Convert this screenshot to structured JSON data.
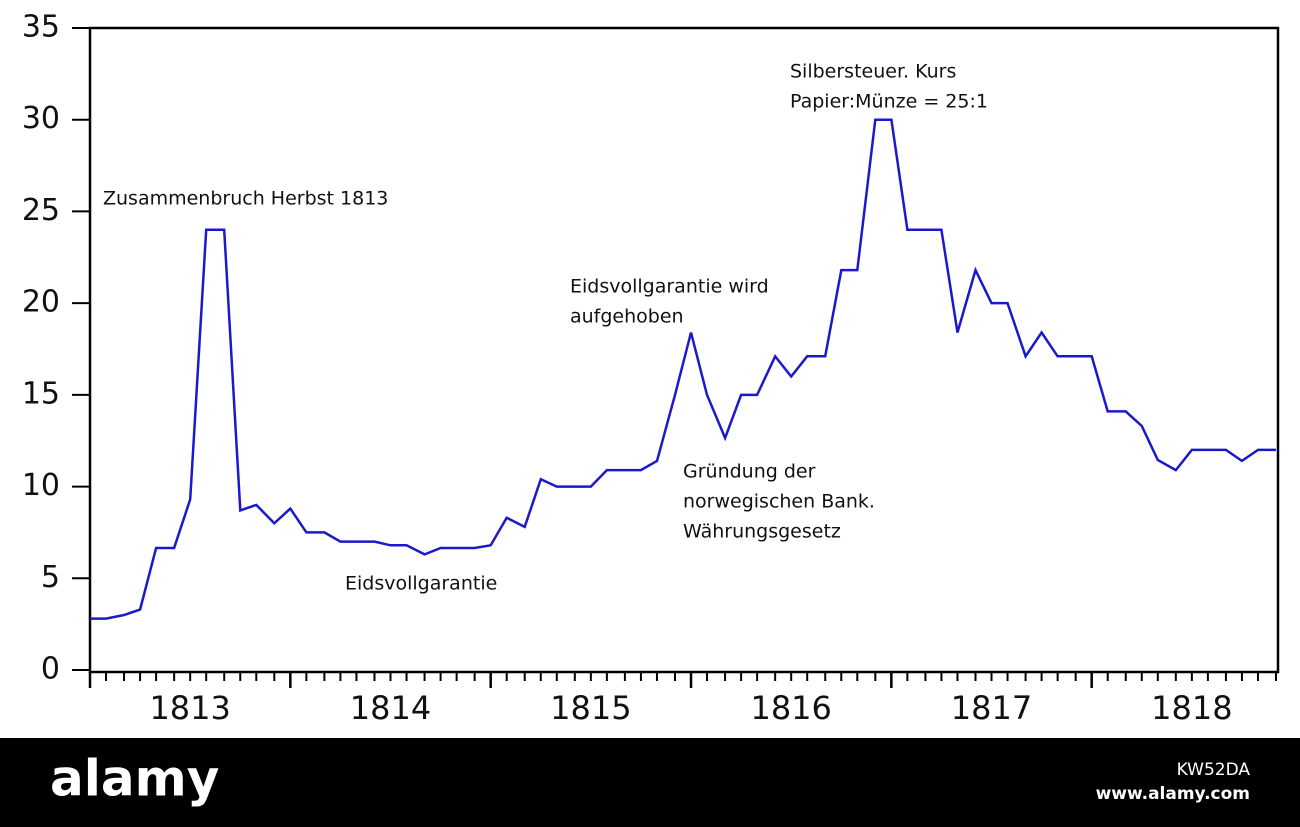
{
  "chart_data": {
    "type": "line",
    "x": [
      1813,
      1813.08,
      1813.17,
      1813.25,
      1813.33,
      1813.42,
      1813.5,
      1813.58,
      1813.67,
      1813.75,
      1813.83,
      1813.92,
      1814,
      1814.08,
      1814.17,
      1814.25,
      1814.33,
      1814.42,
      1814.5,
      1814.58,
      1814.67,
      1814.75,
      1814.83,
      1814.92,
      1815,
      1815.08,
      1815.17,
      1815.25,
      1815.33,
      1815.42,
      1815.5,
      1815.58,
      1815.67,
      1815.75,
      1815.83,
      1815.92,
      1816,
      1816.08,
      1816.17,
      1816.25,
      1816.33,
      1816.42,
      1816.5,
      1816.58,
      1816.67,
      1816.75,
      1816.83,
      1816.92,
      1817,
      1817.08,
      1817.17,
      1817.25,
      1817.33,
      1817.42,
      1817.5,
      1817.58,
      1817.67,
      1817.75,
      1817.83,
      1817.92,
      1818,
      1818.08,
      1818.17,
      1818.25,
      1818.33,
      1818.42,
      1818.5,
      1818.58,
      1818.67,
      1818.75,
      1818.83,
      1818.92
    ],
    "series": [
      {
        "color": "#1a1acc",
        "values": [
          2.8,
          2.8,
          3.0,
          3.3,
          6.65,
          6.65,
          9.3,
          24,
          24,
          8.7,
          9.0,
          8.0,
          8.8,
          7.5,
          7.5,
          7.0,
          7.0,
          7.0,
          6.8,
          6.8,
          6.3,
          6.65,
          6.65,
          6.65,
          6.8,
          8.3,
          7.8,
          10.4,
          10.0,
          10.0,
          10.0,
          10.9,
          10.9,
          10.9,
          11.4,
          15.0,
          18.4,
          15.0,
          12.65,
          15.0,
          15.0,
          17.1,
          16.0,
          17.1,
          17.1,
          21.8,
          21.8,
          30.0,
          30.0,
          24.0,
          24.0,
          24.0,
          18.4,
          21.8,
          20.0,
          20.0,
          17.1,
          18.4,
          17.1,
          17.1,
          17.1,
          14.1,
          14.1,
          13.3,
          11.45,
          10.9,
          12.0,
          12.0,
          12.0,
          11.4,
          12.0,
          12.0
        ]
      }
    ],
    "xlim": [
      1813,
      1818.92
    ],
    "xticks": [
      1813,
      1814,
      1815,
      1816,
      1817,
      1818
    ],
    "ylim": [
      0,
      35
    ],
    "yticks": [
      0,
      5,
      10,
      15,
      20,
      25,
      30,
      35
    ],
    "grid": false,
    "annotations": [
      [
        "Zusammenbruch Herbst 1813"
      ],
      [
        "Eidsvollgarantie"
      ],
      [
        "Eidsvollgarantie wird",
        "aufgehoben"
      ],
      [
        "Gründung der",
        "norwegischen Bank.",
        "Währungsgesetz"
      ],
      [
        "Silbersteuer. Kurs",
        "Papier:Münze = 25:1"
      ]
    ]
  },
  "watermark": {
    "logo": "alamy",
    "id": "KW52DA",
    "url": "www.alamy.com"
  }
}
